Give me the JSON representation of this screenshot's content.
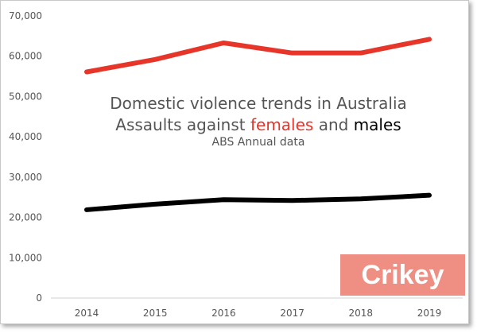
{
  "chart_data": {
    "type": "line",
    "title": "Domestic violence trends in Australia",
    "subtitle_parts": {
      "prefix": "Assaults against ",
      "females": "females",
      "middle": " and ",
      "males": "males"
    },
    "note": "ABS Annual data",
    "categories": [
      "2014",
      "2015",
      "2016",
      "2017",
      "2018",
      "2019"
    ],
    "series": [
      {
        "name": "females",
        "color": "#e8352a",
        "values": [
          56100,
          59200,
          63300,
          60800,
          60800,
          64200
        ]
      },
      {
        "name": "males",
        "color": "#000000",
        "values": [
          21900,
          23300,
          24400,
          24200,
          24600,
          25500
        ]
      }
    ],
    "ylim": [
      0,
      70000
    ],
    "yticks": [
      "0",
      "10,000",
      "20,000",
      "30,000",
      "40,000",
      "50,000",
      "60,000",
      "70,000"
    ],
    "grid": false,
    "legend": "none"
  },
  "logo": {
    "text": "Crikey",
    "color": "#ef8f83"
  }
}
